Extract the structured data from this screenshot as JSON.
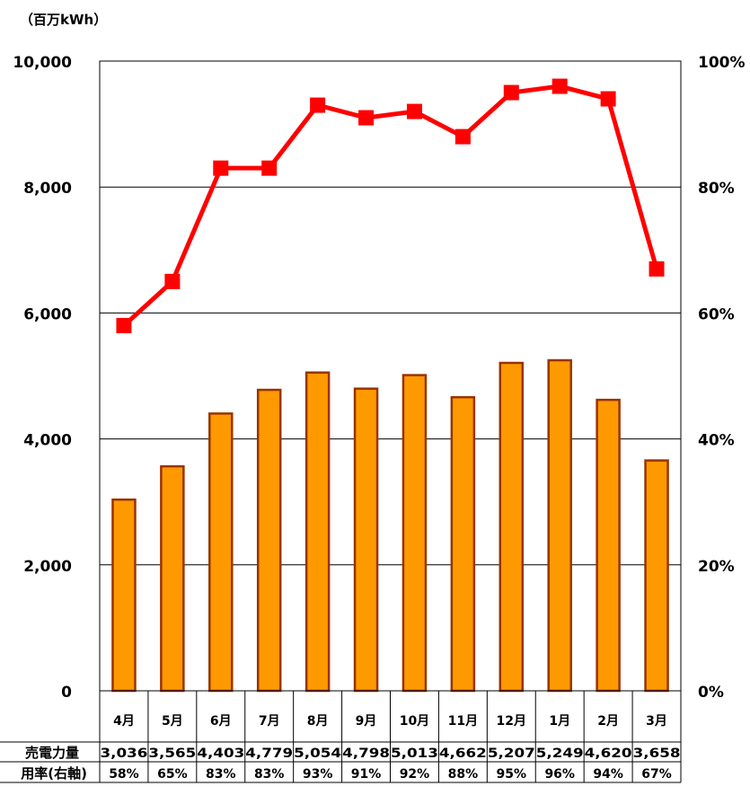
{
  "chart_data": {
    "type": "bar",
    "unit_label": "（百万kWh）",
    "categories": [
      "4月",
      "5月",
      "6月",
      "7月",
      "8月",
      "9月",
      "10月",
      "11月",
      "12月",
      "1月",
      "2月",
      "3月"
    ],
    "left_axis": {
      "ylim": [
        0,
        10000
      ],
      "ticks": [
        0,
        2000,
        4000,
        6000,
        8000,
        10000
      ],
      "tick_labels": [
        "0",
        "2,000",
        "4,000",
        "6,000",
        "8,000",
        "10,000"
      ]
    },
    "right_axis": {
      "ylim": [
        0,
        100
      ],
      "ticks": [
        0,
        20,
        40,
        60,
        80,
        100
      ],
      "tick_labels": [
        "0%",
        "20%",
        "40%",
        "60%",
        "80%",
        "100%"
      ]
    },
    "grid": true,
    "series": [
      {
        "name": "売電力量",
        "kind": "bar",
        "axis": "left",
        "values": [
          3036,
          3565,
          4403,
          4779,
          5054,
          4798,
          5013,
          4662,
          5207,
          5249,
          4620,
          3658
        ],
        "labels": [
          "3,036",
          "3,565",
          "4,403",
          "4,779",
          "5,054",
          "4,798",
          "5,013",
          "4,662",
          "5,207",
          "5,249",
          "4,620",
          "3,658"
        ],
        "color": "#FF9900",
        "edge_color": "#993300"
      },
      {
        "name": "用率(右軸)",
        "kind": "line",
        "axis": "right",
        "values": [
          58,
          65,
          83,
          83,
          93,
          91,
          92,
          88,
          95,
          96,
          94,
          67
        ],
        "labels": [
          "58%",
          "65%",
          "83%",
          "83%",
          "93%",
          "91%",
          "92%",
          "88%",
          "95%",
          "96%",
          "94%",
          "67%"
        ],
        "color": "#FF0000"
      }
    ]
  }
}
